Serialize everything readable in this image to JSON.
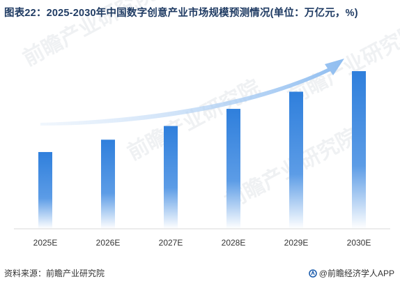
{
  "title": "图表22：2025-2030年中国数字创意产业市场规模预测情况(单位：万亿元，%)",
  "source": "资料来源：前瞻产业研究院",
  "brand": "@前瞻经济学人APP",
  "watermark": [
    "前瞻产业研究院",
    "前瞻产业研究院",
    "前瞻产业研究院",
    "前瞻产业研究院"
  ],
  "colors": {
    "bar_top": "#2f7fdc",
    "bar_bottom": "#ffffff",
    "arrow": "#8fbdf0",
    "axis": "#d9d9d9"
  },
  "chart_data": {
    "type": "bar",
    "title": "图表22：2025-2030年中国数字创意产业市场规模预测情况(单位：万亿元，%)",
    "categories": [
      "2025E",
      "2026E",
      "2027E",
      "2028E",
      "2029E",
      "2030E"
    ],
    "values": [
      11.2,
      13.0,
      15.0,
      17.5,
      20.0,
      23.0
    ],
    "ylim": [
      0,
      23
    ],
    "xlabel": "",
    "ylabel": "",
    "grid": false,
    "legend": "none",
    "annotations": [
      "upward trend arrow"
    ]
  }
}
